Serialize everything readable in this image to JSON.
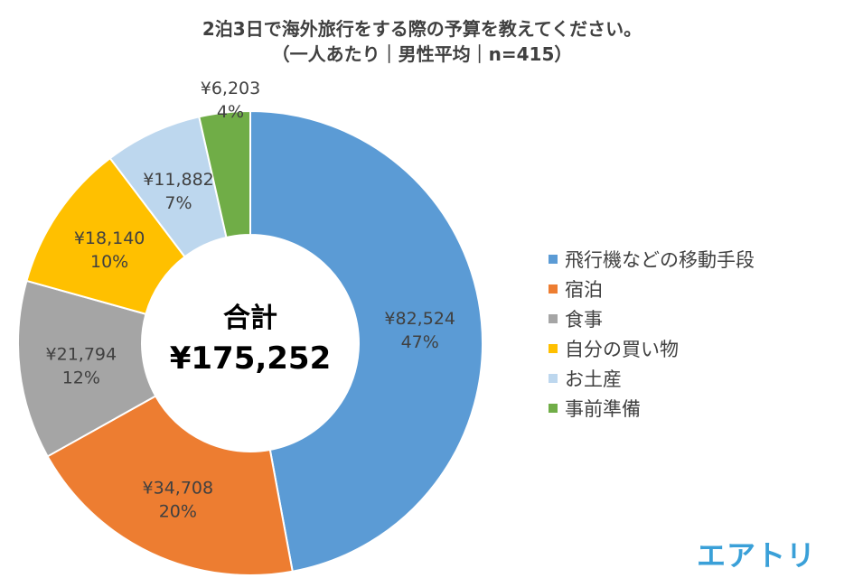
{
  "header": {
    "title_line1": "2泊3日で海外旅行をする際の予算を教えてください。",
    "title_line2": "（一人あたり｜男性平均｜n=415）"
  },
  "center": {
    "label": "合計",
    "total": "¥175,252"
  },
  "logo": {
    "text": "エアトリ"
  },
  "chart_data": {
    "type": "pie",
    "donut": true,
    "title": "2泊3日で海外旅行をする際の予算を教えてください。（一人あたり｜男性平均｜n=415）",
    "total_label": "合計 ¥175,252",
    "legend_position": "right",
    "categories": [
      "飛行機などの移動手段",
      "宿泊",
      "食事",
      "自分の買い物",
      "お土産",
      "事前準備"
    ],
    "values": [
      82524,
      34708,
      21794,
      18140,
      11882,
      6203
    ],
    "value_labels": [
      "¥82,524",
      "¥34,708",
      "¥21,794",
      "¥18,140",
      "¥11,882",
      "¥6,203"
    ],
    "percent_labels": [
      "47%",
      "20%",
      "12%",
      "10%",
      "7%",
      "4%"
    ],
    "colors": [
      "#5b9bd5",
      "#ed7d31",
      "#a5a5a5",
      "#ffc000",
      "#bdd7ee",
      "#70ad47"
    ]
  }
}
